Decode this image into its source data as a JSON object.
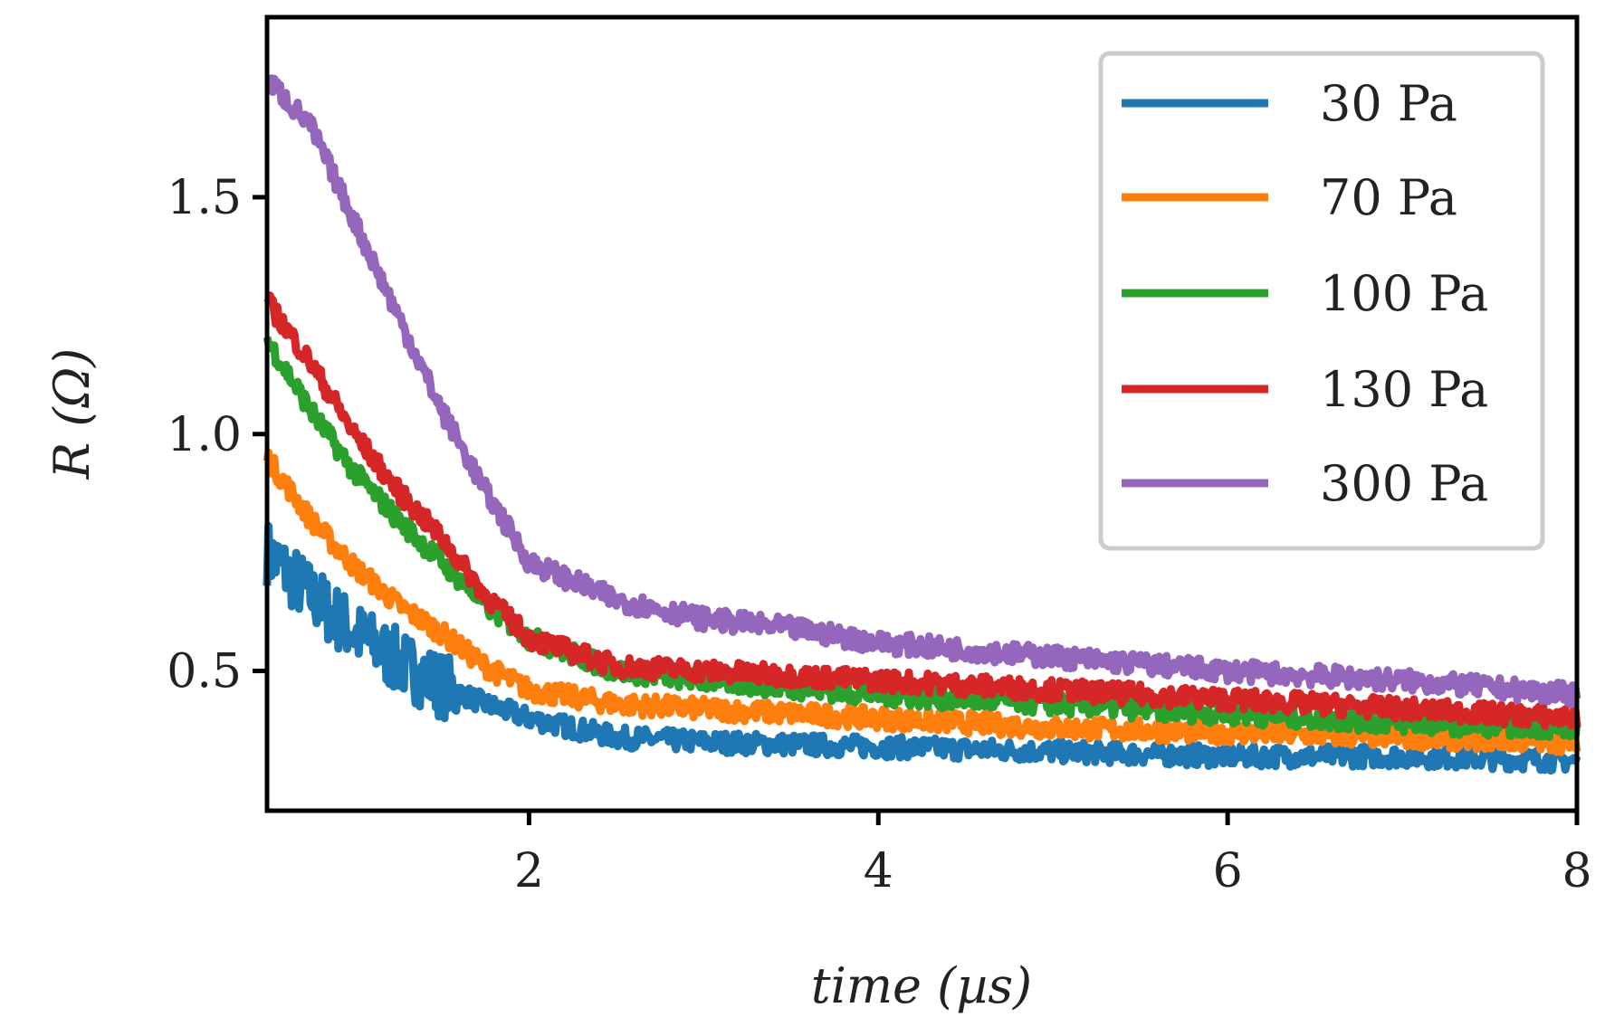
{
  "chart_data": {
    "type": "line",
    "title": "",
    "xlabel": "time (µs)",
    "ylabel": "R (Ω)",
    "xlim": [
      0.5,
      8
    ],
    "ylim": [
      0.205,
      1.88
    ],
    "xticks": [
      2,
      4,
      6,
      8
    ],
    "xtick_labels": [
      "2",
      "4",
      "6",
      "8"
    ],
    "yticks": [
      0.5,
      1.0,
      1.5
    ],
    "ytick_labels": [
      "0.5",
      "1.0",
      "1.5"
    ],
    "grid": false,
    "legend_position": "top-right",
    "x": [
      0.5,
      0.75,
      1.0,
      1.25,
      1.5,
      1.75,
      2.0,
      2.5,
      3.0,
      3.5,
      4.0,
      5.0,
      6.0,
      7.0,
      8.0
    ],
    "series": [
      {
        "name": "30 Pa",
        "color": "#1f77b4",
        "values": [
          0.75,
          0.66,
          0.58,
          0.52,
          0.47,
          0.43,
          0.4,
          0.36,
          0.35,
          0.345,
          0.34,
          0.33,
          0.32,
          0.32,
          0.31
        ]
      },
      {
        "name": "70 Pa",
        "color": "#ff7f0e",
        "values": [
          0.95,
          0.82,
          0.72,
          0.64,
          0.58,
          0.51,
          0.46,
          0.43,
          0.42,
          0.41,
          0.4,
          0.38,
          0.37,
          0.36,
          0.35
        ]
      },
      {
        "name": "100 Pa",
        "color": "#2ca02c",
        "values": [
          1.2,
          1.05,
          0.92,
          0.82,
          0.73,
          0.64,
          0.57,
          0.5,
          0.48,
          0.465,
          0.45,
          0.43,
          0.41,
          0.39,
          0.38
        ]
      },
      {
        "name": "130 Pa",
        "color": "#d62728",
        "values": [
          1.28,
          1.15,
          1.0,
          0.88,
          0.78,
          0.66,
          0.57,
          0.51,
          0.5,
          0.49,
          0.48,
          0.46,
          0.44,
          0.42,
          0.4
        ]
      },
      {
        "name": "300 Pa",
        "color": "#9467bd",
        "values": [
          1.75,
          1.65,
          1.45,
          1.25,
          1.05,
          0.88,
          0.73,
          0.65,
          0.61,
          0.59,
          0.56,
          0.53,
          0.5,
          0.48,
          0.45
        ]
      }
    ]
  }
}
